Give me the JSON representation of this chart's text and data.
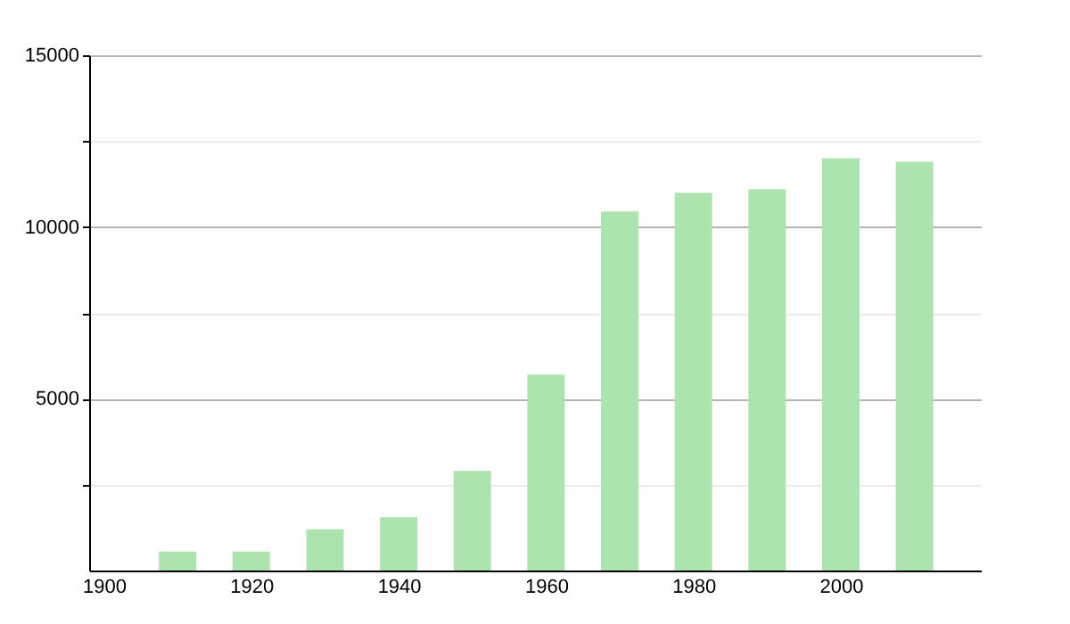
{
  "chart_data": {
    "type": "bar",
    "x": [
      1910,
      1920,
      1930,
      1940,
      1950,
      1960,
      1970,
      1980,
      1990,
      2000,
      2010
    ],
    "values": [
      550,
      550,
      1200,
      1550,
      2900,
      5700,
      10450,
      11000,
      11100,
      12000,
      11900
    ],
    "color": "#ade3ae",
    "xlim": [
      1898,
      2019
    ],
    "xticks": [
      1900,
      1920,
      1940,
      1960,
      1980,
      2000
    ],
    "ylim": [
      0,
      15000
    ],
    "yticks": [
      {
        "value": 2500,
        "label": null
      },
      5000,
      {
        "value": 7500,
        "label": null
      },
      10000,
      {
        "value": 12500,
        "label": null
      },
      15000
    ],
    "grid": "y"
  }
}
